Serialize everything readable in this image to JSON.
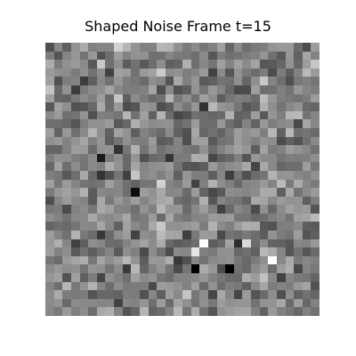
{
  "figure": {
    "title": "Shaped Noise Frame t=15"
  },
  "image": {
    "colormap": "gray",
    "rows": 32,
    "cols": 32,
    "seed": 15,
    "bright_pixels": [
      {
        "row": 23,
        "col": 18,
        "value": 1.0
      },
      {
        "row": 23,
        "col": 23,
        "value": 0.85
      },
      {
        "row": 24,
        "col": 17,
        "value": 0.9
      },
      {
        "row": 25,
        "col": 26,
        "value": 1.0
      }
    ],
    "dark_pixels": [
      {
        "row": 26,
        "col": 17,
        "value": 0.0
      },
      {
        "row": 26,
        "col": 21,
        "value": 0.0
      },
      {
        "row": 17,
        "col": 10,
        "value": 0.05
      },
      {
        "row": 13,
        "col": 6,
        "value": 0.1
      }
    ]
  }
}
